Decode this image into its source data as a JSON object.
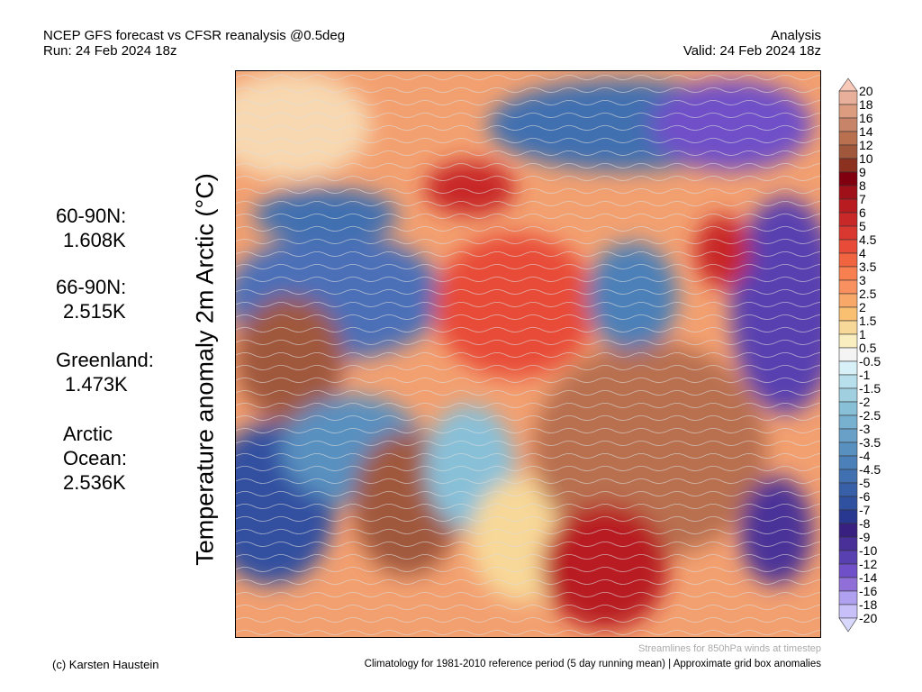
{
  "header": {
    "title": "NCEP GFS forecast vs CFSR reanalysis @0.5deg",
    "run": "Run: 24 Feb 2024 18z",
    "type": "Analysis",
    "valid": "Valid: 24 Feb 2024 18z"
  },
  "ylabel": "Temperature anomaly 2m Arctic (°C)",
  "stats": [
    {
      "label": "60-90N:",
      "value": "1.608K"
    },
    {
      "label": "66-90N:",
      "value": "2.515K"
    },
    {
      "label": "Greenland:",
      "value": "1.473K"
    },
    {
      "label": "Arctic\nOcean:",
      "value": "2.536K"
    }
  ],
  "colorbar": {
    "labels": [
      "20",
      "18",
      "16",
      "14",
      "12",
      "10",
      "9",
      "8",
      "7",
      "6",
      "5",
      "4.5",
      "4",
      "3.5",
      "3",
      "2.5",
      "2",
      "1.5",
      "1",
      "0.5",
      "-0.5",
      "-1",
      "-1.5",
      "-2",
      "-2.5",
      "-3",
      "-3.5",
      "-4",
      "-4.5",
      "-5",
      "-6",
      "-7",
      "-8",
      "-9",
      "-10",
      "-12",
      "-14",
      "-16",
      "-18",
      "-20"
    ],
    "colors": [
      "#f8c8b8",
      "#e8b09a",
      "#dc9c80",
      "#c88468",
      "#b8704f",
      "#a0583c",
      "#8c3020",
      "#800010",
      "#a01018",
      "#b81c20",
      "#c82828",
      "#d83830",
      "#e84c38",
      "#f06440",
      "#f88050",
      "#f89060",
      "#f8a868",
      "#f8c070",
      "#f8d898",
      "#f8eec0",
      "#f4f4f4",
      "#d8f0f8",
      "#b8e0ec",
      "#a0d0e0",
      "#88c0d8",
      "#78b0d0",
      "#68a0c8",
      "#5890c0",
      "#4c80b8",
      "#4070b0",
      "#3860a8",
      "#3050a0",
      "#283890",
      "#382080",
      "#483098",
      "#5840b0",
      "#7050c8",
      "#9070d8",
      "#b0a0f0",
      "#c8c0f8",
      "#d8d8fc"
    ]
  },
  "footer": {
    "credit": "(c) Karsten Haustein",
    "streamlines": "Streamlines for 850hPa winds at timestep",
    "climatology": "Climatology for 1981-2010 reference period (5 day running mean) | Approximate grid box anomalies"
  }
}
